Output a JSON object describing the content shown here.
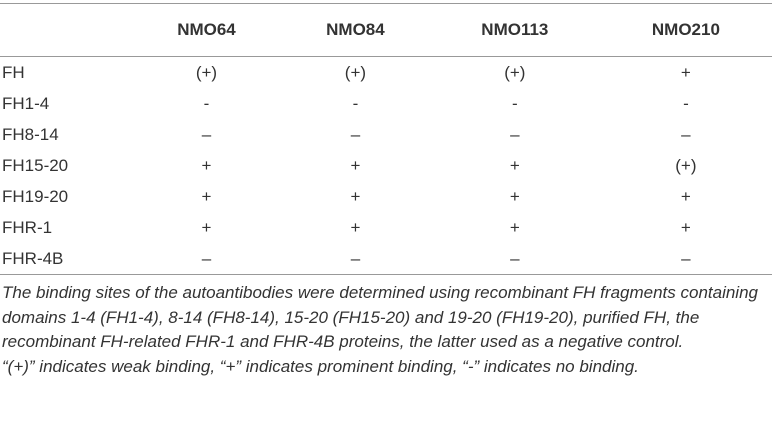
{
  "table": {
    "columns": [
      "",
      "NMO64",
      "NMO84",
      "NMO113",
      "NMO210"
    ],
    "rows": [
      [
        "FH",
        "(+)",
        "(+)",
        "(+)",
        "+"
      ],
      [
        "FH1-4",
        "-",
        "-",
        "-",
        "-"
      ],
      [
        "FH8-14",
        "–",
        "–",
        "–",
        "–"
      ],
      [
        "FH15-20",
        "+",
        "+",
        "+",
        "(+)"
      ],
      [
        "FH19-20",
        "+",
        "+",
        "+",
        "+"
      ],
      [
        "FHR-1",
        "+",
        "+",
        "+",
        "+"
      ],
      [
        "FHR-4B",
        "–",
        "–",
        "–",
        "–"
      ]
    ],
    "footnotes": [
      "The binding sites of the autoantibodies were determined using recombinant FH fragments containing domains 1-4 (FH1-4), 8-14 (FH8-14), 15-20 (FH15-20) and 19-20 (FH19-20), purified FH, the recombinant FH-related FHR-1 and FHR-4B proteins, the latter used as a negative control.",
      "“(+)” indicates weak binding, “+” indicates prominent binding, “-” indicates no binding."
    ]
  }
}
